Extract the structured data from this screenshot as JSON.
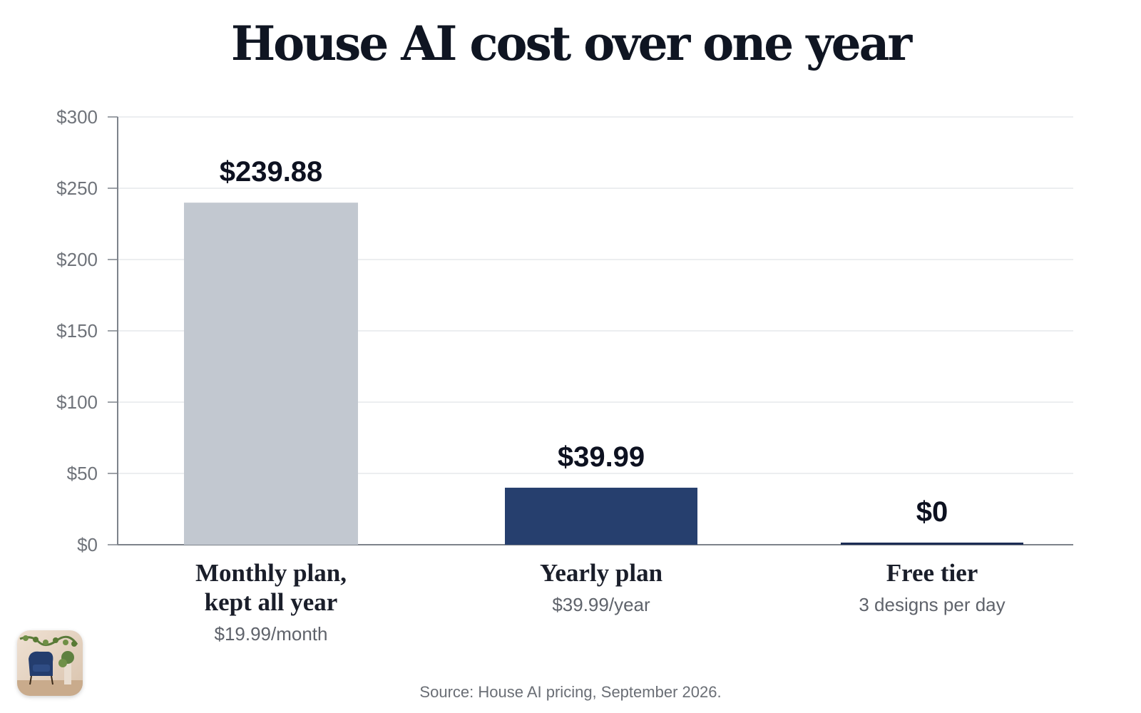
{
  "title": "House AI cost over one year",
  "source": "Source: House AI pricing, September 2026.",
  "app_icon": "house-ai-app-icon",
  "colors": {
    "monthly_bar": "#c2c8d0",
    "yearly_bar": "#263f6e",
    "free_bar": "#1c2d55",
    "axis": "#7d828a",
    "grid": "#e6e8eb"
  },
  "chart_data": {
    "type": "bar",
    "title": "House AI cost over one year",
    "xlabel": "",
    "ylabel": "",
    "ylim": [
      0,
      300
    ],
    "yticks": [
      0,
      50,
      100,
      150,
      200,
      250,
      300
    ],
    "ytick_labels": [
      "$0",
      "$50",
      "$100",
      "$150",
      "$200",
      "$250",
      "$300"
    ],
    "grid": true,
    "categories": [
      "Monthly plan, kept all year",
      "Yearly plan",
      "Free tier"
    ],
    "category_lines": [
      [
        "Monthly plan,",
        "kept all year"
      ],
      [
        "Yearly plan"
      ],
      [
        "Free tier"
      ]
    ],
    "category_subtitles": [
      "$19.99/month",
      "$39.99/year",
      "3 designs per day"
    ],
    "values": [
      239.88,
      39.99,
      0
    ],
    "value_labels": [
      "$239.88",
      "$39.99",
      "$0"
    ]
  }
}
